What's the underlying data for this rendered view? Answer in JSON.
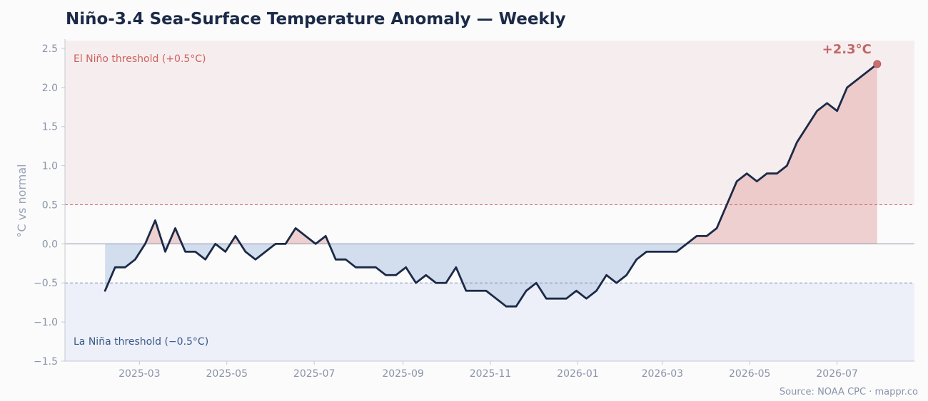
{
  "chart_data": {
    "type": "line",
    "title": "Niño-3.4 Sea-Surface Temperature Anomaly — Weekly",
    "ylabel": "°C vs normal",
    "xlabel": "",
    "ylim": [
      -1.5,
      2.6
    ],
    "y_ticks": [
      -1.5,
      -1.0,
      -0.5,
      0.0,
      0.5,
      1.0,
      1.5,
      2.0,
      2.5
    ],
    "y_tick_labels": [
      "−1.5",
      "−1.0",
      "−0.5",
      "0.0",
      "0.5",
      "1.0",
      "1.5",
      "2.0",
      "2.5"
    ],
    "x_range": [
      "2025-01-08",
      "2026-08-24"
    ],
    "x_ticks": [
      "2025-03-01",
      "2025-05-01",
      "2025-07-01",
      "2025-09-01",
      "2025-11-01",
      "2026-01-01",
      "2026-03-01",
      "2026-05-01",
      "2026-07-01"
    ],
    "x_tick_labels": [
      "2025-03",
      "2025-05",
      "2025-07",
      "2025-09",
      "2025-11",
      "2026-01",
      "2026-03",
      "2026-05",
      "2026-07"
    ],
    "grid": false,
    "series": [
      {
        "x": [
          "2025-02-05",
          "2025-02-12",
          "2025-02-19",
          "2025-02-26",
          "2025-03-05",
          "2025-03-12",
          "2025-03-19",
          "2025-03-26",
          "2025-04-02",
          "2025-04-09",
          "2025-04-16",
          "2025-04-23",
          "2025-04-30",
          "2025-05-07",
          "2025-05-14",
          "2025-05-21",
          "2025-05-28",
          "2025-06-04",
          "2025-06-11",
          "2025-06-18",
          "2025-06-25",
          "2025-07-02",
          "2025-07-09",
          "2025-07-16",
          "2025-07-23",
          "2025-07-30",
          "2025-08-06",
          "2025-08-13",
          "2025-08-20",
          "2025-08-27",
          "2025-09-03",
          "2025-09-10",
          "2025-09-17",
          "2025-09-24",
          "2025-10-01",
          "2025-10-08",
          "2025-10-15",
          "2025-10-22",
          "2025-10-29",
          "2025-11-05",
          "2025-11-12",
          "2025-11-19",
          "2025-11-26",
          "2025-12-03",
          "2025-12-10",
          "2025-12-17",
          "2025-12-24",
          "2025-12-31",
          "2026-01-07",
          "2026-01-14",
          "2026-01-21",
          "2026-01-28",
          "2026-02-04",
          "2026-02-11",
          "2026-02-18",
          "2026-02-25",
          "2026-03-04",
          "2026-03-11",
          "2026-03-18",
          "2026-03-25",
          "2026-04-01",
          "2026-04-08",
          "2026-04-15",
          "2026-04-22",
          "2026-04-29",
          "2026-05-06",
          "2026-05-13",
          "2026-05-20",
          "2026-05-27",
          "2026-06-03",
          "2026-06-10",
          "2026-06-17",
          "2026-06-24",
          "2026-07-01",
          "2026-07-08",
          "2026-07-15",
          "2026-07-22",
          "2026-07-29"
        ],
        "values": [
          -0.6,
          -0.3,
          -0.3,
          -0.2,
          0.0,
          0.3,
          -0.1,
          0.2,
          -0.1,
          -0.1,
          -0.2,
          0.0,
          -0.1,
          0.1,
          -0.1,
          -0.2,
          -0.1,
          0.0,
          0.0,
          0.2,
          0.1,
          0.0,
          0.1,
          -0.2,
          -0.2,
          -0.3,
          -0.3,
          -0.3,
          -0.4,
          -0.4,
          -0.3,
          -0.5,
          -0.4,
          -0.5,
          -0.5,
          -0.3,
          -0.6,
          -0.6,
          -0.6,
          -0.7,
          -0.8,
          -0.8,
          -0.6,
          -0.5,
          -0.7,
          -0.7,
          -0.7,
          -0.6,
          -0.7,
          -0.6,
          -0.4,
          -0.5,
          -0.4,
          -0.2,
          -0.1,
          -0.1,
          -0.1,
          -0.1,
          0.0,
          0.1,
          0.1,
          0.2,
          0.5,
          0.8,
          0.9,
          0.8,
          0.9,
          0.9,
          1.0,
          1.3,
          1.5,
          1.7,
          1.8,
          1.7,
          2.0,
          2.1,
          2.2,
          2.3
        ]
      }
    ],
    "thresholds": [
      {
        "value": 0.5,
        "label": "El Niño threshold (+0.5°C)"
      },
      {
        "value": -0.5,
        "label": "La Niña threshold (−0.5°C)"
      }
    ],
    "end_label": "+2.3°C",
    "colors": {
      "line": "#1b2a47",
      "warm": "#d06060",
      "warm_fill": "#e8b8b8",
      "warm_band": "#f6eeee",
      "cold": "#8090b8",
      "cold_fill": "#c8d6ea",
      "cold_band": "#edf0f8",
      "cold_text": "#3a5a8a",
      "axis_text": "#8a93a8"
    }
  },
  "source": "Source: NOAA CPC  ·  mappr.co"
}
